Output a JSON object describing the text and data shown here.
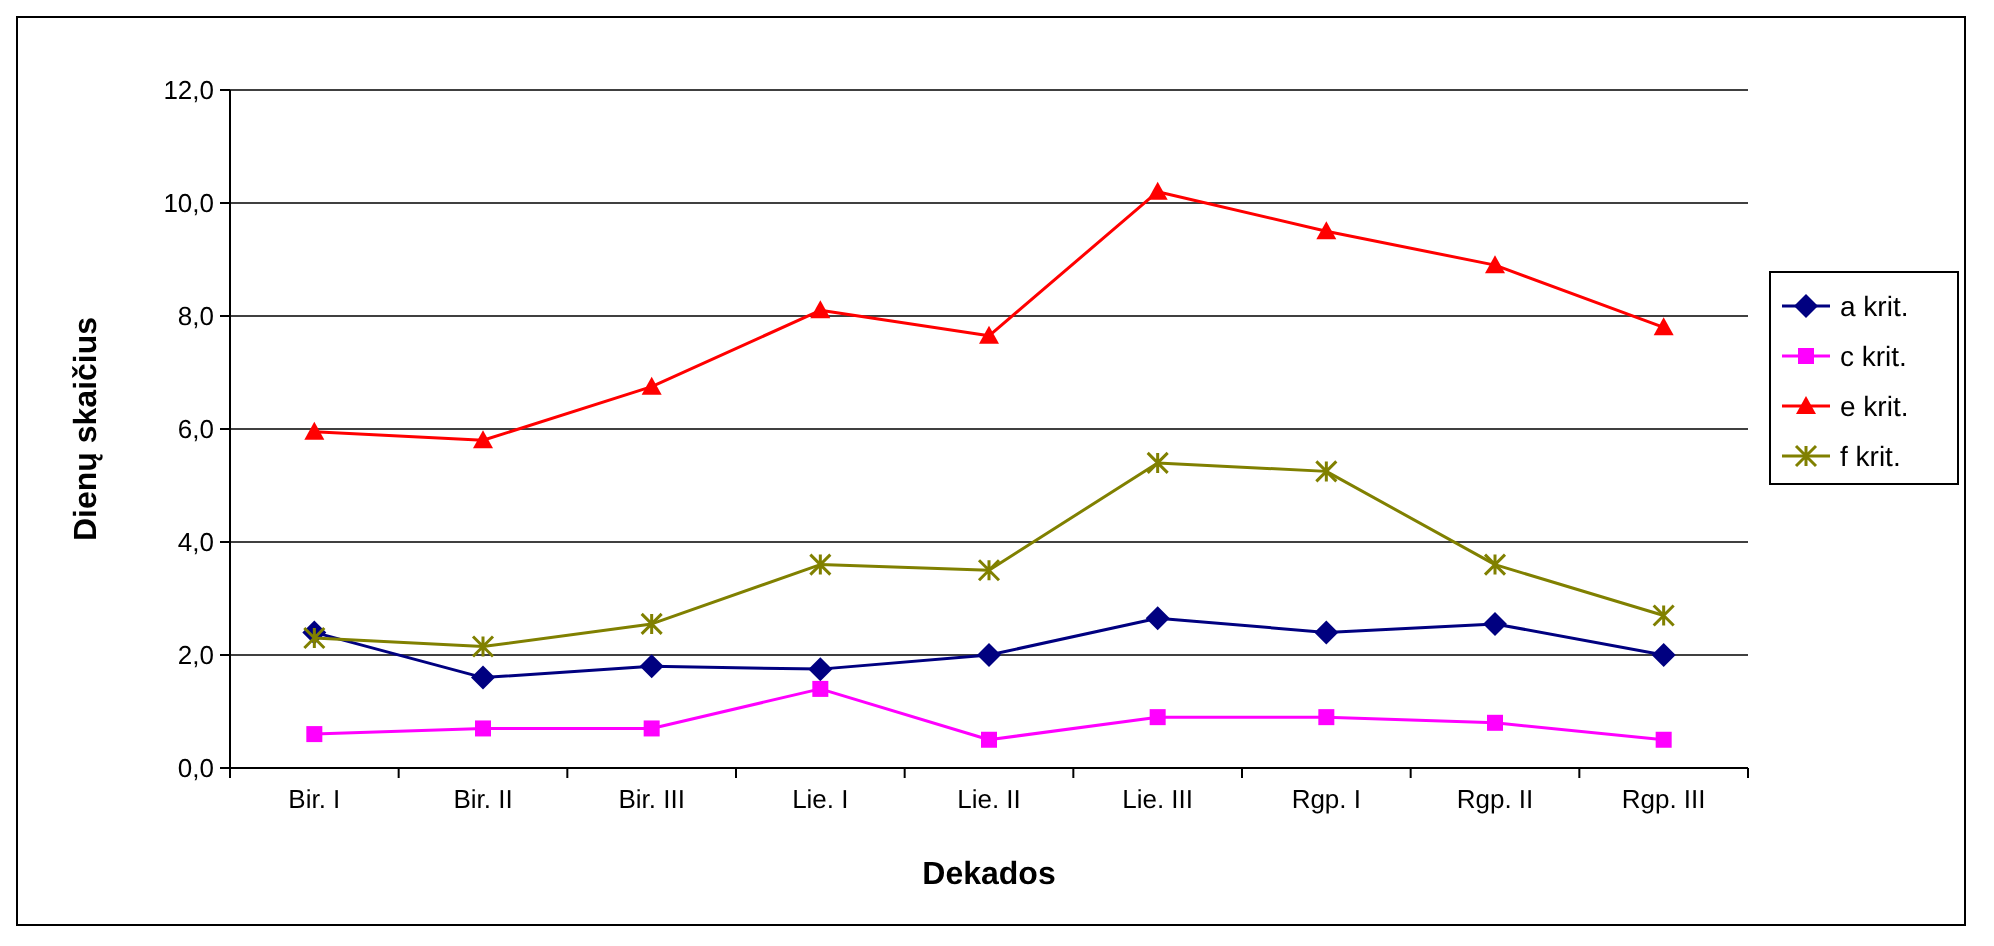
{
  "chart_data": {
    "type": "line",
    "xlabel": "Dekados",
    "ylabel": "Dienų skaičius",
    "categories": [
      "Bir. I",
      "Bir. II",
      "Bir. III",
      "Lie. I",
      "Lie. II",
      "Lie. III",
      "Rgp. I",
      "Rgp. II",
      "Rgp. III"
    ],
    "ylim": [
      0,
      12
    ],
    "yticks": [
      {
        "value": 0,
        "label": "0,0"
      },
      {
        "value": 2,
        "label": "2,0"
      },
      {
        "value": 4,
        "label": "4,0"
      },
      {
        "value": 6,
        "label": "6,0"
      },
      {
        "value": 8,
        "label": "8,0"
      },
      {
        "value": 10,
        "label": "10,0"
      },
      {
        "value": 12,
        "label": "12,0"
      }
    ],
    "grid": "y",
    "legend": "right",
    "series": [
      {
        "name": "a krit.",
        "color": "#000080",
        "marker": "diamond",
        "values": [
          2.4,
          1.6,
          1.8,
          1.75,
          2.0,
          2.65,
          2.4,
          2.55,
          2.0
        ]
      },
      {
        "name": "c krit.",
        "color": "#ff00ff",
        "marker": "square",
        "values": [
          0.6,
          0.7,
          0.7,
          1.4,
          0.5,
          0.9,
          0.9,
          0.8,
          0.5
        ]
      },
      {
        "name": "e krit.",
        "color": "#ff0000",
        "marker": "triangle",
        "values": [
          5.95,
          5.8,
          6.75,
          8.1,
          7.65,
          10.2,
          9.5,
          8.9,
          7.8
        ]
      },
      {
        "name": "f krit.",
        "color": "#808000",
        "marker": "cross",
        "values": [
          2.3,
          2.15,
          2.55,
          3.6,
          3.5,
          5.4,
          5.25,
          3.6,
          2.7
        ]
      }
    ]
  }
}
